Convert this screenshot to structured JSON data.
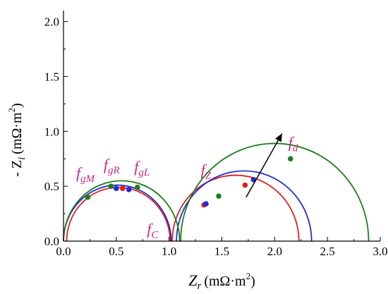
{
  "chart_data": {
    "type": "line",
    "title": "",
    "xlim": [
      0,
      3.0
    ],
    "ylim": [
      0,
      2.1
    ],
    "grid": false,
    "legend": "none",
    "x_ticks": [
      "0.0",
      "0.5",
      "1.0",
      "1.5",
      "2.0",
      "2.5",
      "3.0"
    ],
    "y_ticks": [
      "0.0",
      "0.5",
      "1.0",
      "1.5",
      "2.0"
    ],
    "xlabel": {
      "main": "Z",
      "sub": "r",
      "unit": "(mΩ·m",
      "sup": "2",
      "close": ")"
    },
    "ylabel": {
      "prefix": "- Z",
      "sub": "i",
      "unit": "(mΩ·m",
      "sup": "2",
      "close": ")"
    },
    "colors": {
      "red": "#e02020",
      "blue": "#1f2fd0",
      "green": "#1e7d1e",
      "label": "#c8297a"
    },
    "series": [
      {
        "color": "#e02020",
        "arcs": [
          {
            "center": [
              0.52,
              0.0
            ],
            "radius": 0.49
          },
          {
            "center": [
              1.63,
              0.0
            ],
            "radius": 0.6
          }
        ],
        "points": [
          [
            0.56,
            0.48
          ],
          [
            1.72,
            0.51
          ],
          [
            1.33,
            0.33
          ]
        ]
      },
      {
        "color": "#1f2fd0",
        "arcs": [
          {
            "center": [
              0.51,
              0.0
            ],
            "radius": 0.51
          },
          {
            "center": [
              1.71,
              0.0
            ],
            "radius": 0.64
          }
        ],
        "points": [
          [
            0.5,
            0.48
          ],
          [
            0.62,
            0.47
          ],
          [
            1.8,
            0.56
          ],
          [
            1.35,
            0.34
          ]
        ]
      },
      {
        "color": "#1e7d1e",
        "arcs": [
          {
            "center": [
              0.55,
              0.0
            ],
            "radius": 0.55
          },
          {
            "center": [
              2.0,
              0.0
            ],
            "radius": 0.89
          }
        ],
        "points": [
          [
            0.23,
            0.4
          ],
          [
            0.45,
            0.5
          ],
          [
            0.7,
            0.49
          ],
          [
            2.15,
            0.75
          ],
          [
            1.47,
            0.41
          ]
        ]
      }
    ],
    "annotations": [
      {
        "main": "f",
        "sub": "gM",
        "x": 0.12,
        "y": 0.57
      },
      {
        "main": "f",
        "sub": "gR",
        "x": 0.38,
        "y": 0.65
      },
      {
        "main": "f",
        "sub": "gL",
        "x": 0.67,
        "y": 0.63
      },
      {
        "main": "f",
        "sub": "C",
        "x": 0.79,
        "y": 0.06
      },
      {
        "main": "f",
        "sub": "Z",
        "x": 1.3,
        "y": 0.6
      },
      {
        "main": "f",
        "sub": "d",
        "x": 2.13,
        "y": 0.85
      }
    ],
    "arrow": {
      "from": [
        1.73,
        0.4
      ],
      "to": [
        2.07,
        0.98
      ],
      "color": "#000000"
    }
  }
}
